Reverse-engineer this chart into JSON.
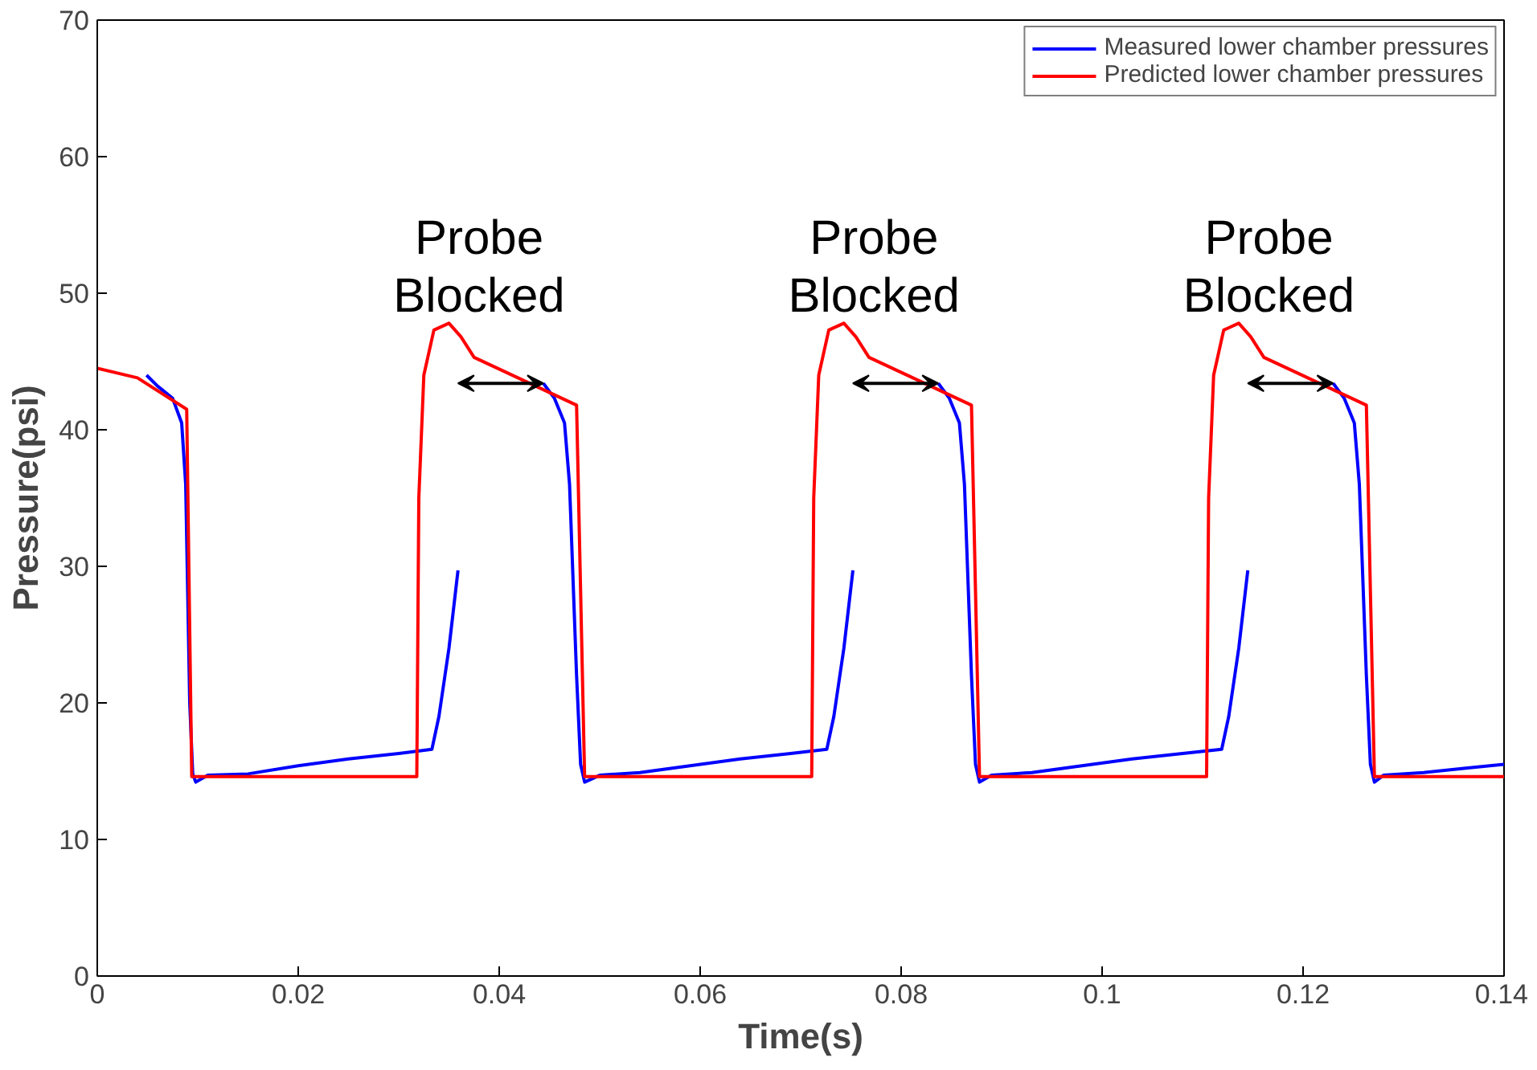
{
  "chart_data": {
    "type": "line",
    "xlabel": "Time(s)",
    "ylabel": "Pressure(psi)",
    "xlim": [
      0,
      0.14
    ],
    "ylim": [
      0,
      70
    ],
    "xticks": [
      0,
      0.02,
      0.04,
      0.06,
      0.08,
      0.1,
      0.12,
      0.14
    ],
    "yticks": [
      0,
      10,
      20,
      30,
      40,
      50,
      60,
      70
    ],
    "grid": false,
    "legend": "top right",
    "line_style": "solid",
    "series": [
      {
        "name": "Measured lower chamber pressures",
        "color": "#0000ff",
        "x": [
          0.0049,
          0.006,
          0.0075,
          0.0084,
          0.0088,
          0.009,
          0.0092,
          0.0095,
          0.0098,
          0.011,
          0.015,
          0.02,
          0.025,
          0.03,
          0.0333,
          0.034,
          0.035,
          0.0359,
          0.04,
          0.0444,
          0.0455,
          0.0465,
          0.047,
          0.0473,
          0.0477,
          0.0481,
          0.0485,
          0.05,
          0.054,
          0.059,
          0.064,
          0.069,
          0.0726,
          0.0733,
          0.0743,
          0.0752,
          0.08,
          0.0837,
          0.0848,
          0.0858,
          0.0863,
          0.0866,
          0.087,
          0.0874,
          0.0878,
          0.089,
          0.093,
          0.098,
          0.103,
          0.108,
          0.1119,
          0.1126,
          0.1136,
          0.1145,
          0.12,
          0.123,
          0.1241,
          0.1251,
          0.1256,
          0.1259,
          0.1263,
          0.1267,
          0.1271,
          0.128,
          0.132,
          0.136,
          0.14
        ],
        "values": [
          44,
          43.2,
          42.3,
          40.5,
          36,
          28,
          20,
          14.8,
          14.2,
          14.7,
          14.8,
          15.4,
          15.9,
          16.3,
          16.6,
          19,
          24,
          29.7,
          null,
          43.4,
          42.3,
          40.5,
          36,
          30,
          22,
          15.5,
          14.2,
          14.7,
          14.9,
          15.4,
          15.9,
          16.3,
          16.6,
          19,
          24,
          29.7,
          null,
          43.4,
          42.3,
          40.5,
          36,
          30,
          22,
          15.5,
          14.2,
          14.7,
          14.9,
          15.4,
          15.9,
          16.3,
          16.6,
          19,
          24,
          29.7,
          null,
          43.4,
          42.3,
          40.5,
          36,
          30,
          22,
          15.5,
          14.2,
          14.7,
          14.9,
          15.2,
          15.5
        ]
      },
      {
        "name": "Predicted lower chamber pressures",
        "color": "#ff0000",
        "x": [
          0,
          0.004,
          0.0089,
          0.0094,
          0.0318,
          0.032,
          0.0325,
          0.0335,
          0.035,
          0.0362,
          0.0375,
          0.0477,
          0.0485,
          0.0711,
          0.0713,
          0.0718,
          0.0728,
          0.0743,
          0.0755,
          0.0768,
          0.087,
          0.0878,
          0.1104,
          0.1106,
          0.1111,
          0.1121,
          0.1136,
          0.1148,
          0.1161,
          0.1263,
          0.1271,
          0.14
        ],
        "values": [
          44.5,
          43.8,
          41.5,
          14.6,
          14.6,
          35,
          44,
          47.3,
          47.8,
          46.8,
          45.3,
          41.8,
          14.6,
          14.6,
          35,
          44,
          47.3,
          47.8,
          46.8,
          45.3,
          41.8,
          14.6,
          14.6,
          35,
          44,
          47.3,
          47.8,
          46.8,
          45.3,
          41.8,
          14.6,
          14.6
        ]
      }
    ],
    "annotations": [
      {
        "text": "Probe\nBlocked",
        "x": 0.0444,
        "y": 43.4
      },
      {
        "text": "Probe\nBlocked",
        "x": 0.0837,
        "y": 43.4
      },
      {
        "text": "Probe\nBlocked",
        "x": 0.123,
        "y": 43.4
      }
    ]
  }
}
